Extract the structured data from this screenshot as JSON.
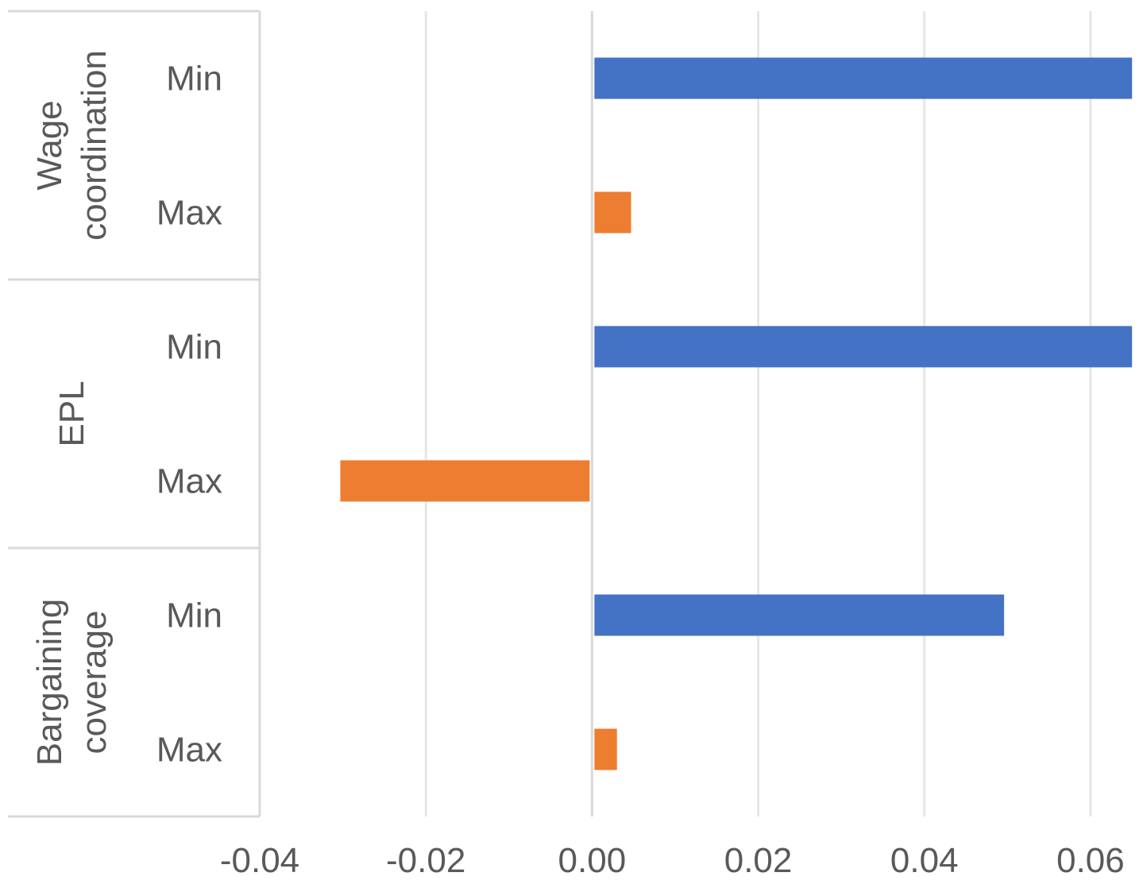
{
  "chart_data": {
    "type": "bar",
    "orientation": "horizontal",
    "groups": [
      {
        "label_lines": [
          "Wage",
          "coordination"
        ],
        "bars": [
          {
            "category": "Min",
            "value": 0.065
          },
          {
            "category": "Max",
            "value": 0.0047
          }
        ]
      },
      {
        "label_lines": [
          "EPL"
        ],
        "bars": [
          {
            "category": "Min",
            "value": 0.065
          },
          {
            "category": "Max",
            "value": -0.0303
          }
        ]
      },
      {
        "label_lines": [
          "Bargaining",
          "coverage"
        ],
        "bars": [
          {
            "category": "Min",
            "value": 0.0496
          },
          {
            "category": "Max",
            "value": 0.003
          }
        ]
      }
    ],
    "colors": {
      "Min": "#4472C4",
      "Max": "#ED7D31"
    },
    "x_ticks": [
      -0.04,
      -0.02,
      0.0,
      0.02,
      0.04,
      0.06
    ],
    "x_tick_labels": [
      "-0.04",
      "-0.02",
      "0.00",
      "0.02",
      "0.04",
      "0.06"
    ],
    "xlim": [
      -0.04,
      0.0645
    ],
    "grid": true,
    "legend": "none",
    "title": "",
    "xlabel": "",
    "ylabel": ""
  }
}
